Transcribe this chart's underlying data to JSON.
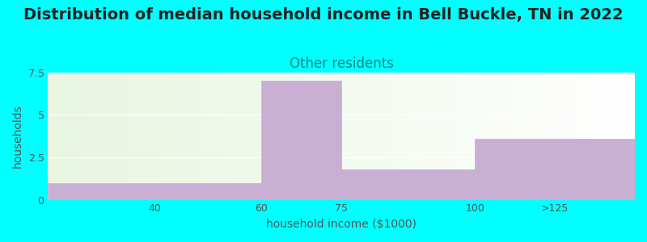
{
  "title": "Distribution of median household income in Bell Buckle, TN in 2022",
  "subtitle": "Other residents",
  "xlabel": "household income ($1000)",
  "ylabel": "households",
  "categories": [
    "40",
    "60",
    "75",
    "100",
    ">125"
  ],
  "bar_heights": [
    1.0,
    0.0,
    7.0,
    1.8,
    3.6
  ],
  "bar_widths": [
    20,
    15,
    15,
    25,
    30
  ],
  "bar_left_edges": [
    20,
    60,
    60,
    75,
    100
  ],
  "bar_color": "#c9afd4",
  "bar_edge_color": "#c9afd4",
  "background_color": "#00ffff",
  "plot_bg_gradient_left": "#e8f5e0",
  "plot_bg_gradient_right": "#ffffff",
  "title_fontsize": 14,
  "subtitle_fontsize": 12,
  "subtitle_color": "#008888",
  "ylabel_color": "#555555",
  "xlabel_color": "#555555",
  "tick_label_color": "#555555",
  "ylim": [
    0,
    7.5
  ],
  "yticks": [
    0,
    2.5,
    5,
    7.5
  ],
  "xtick_positions": [
    40,
    60,
    75,
    100,
    115
  ],
  "xtick_labels": [
    "40",
    "60",
    "75",
    "100",
    ">125"
  ]
}
